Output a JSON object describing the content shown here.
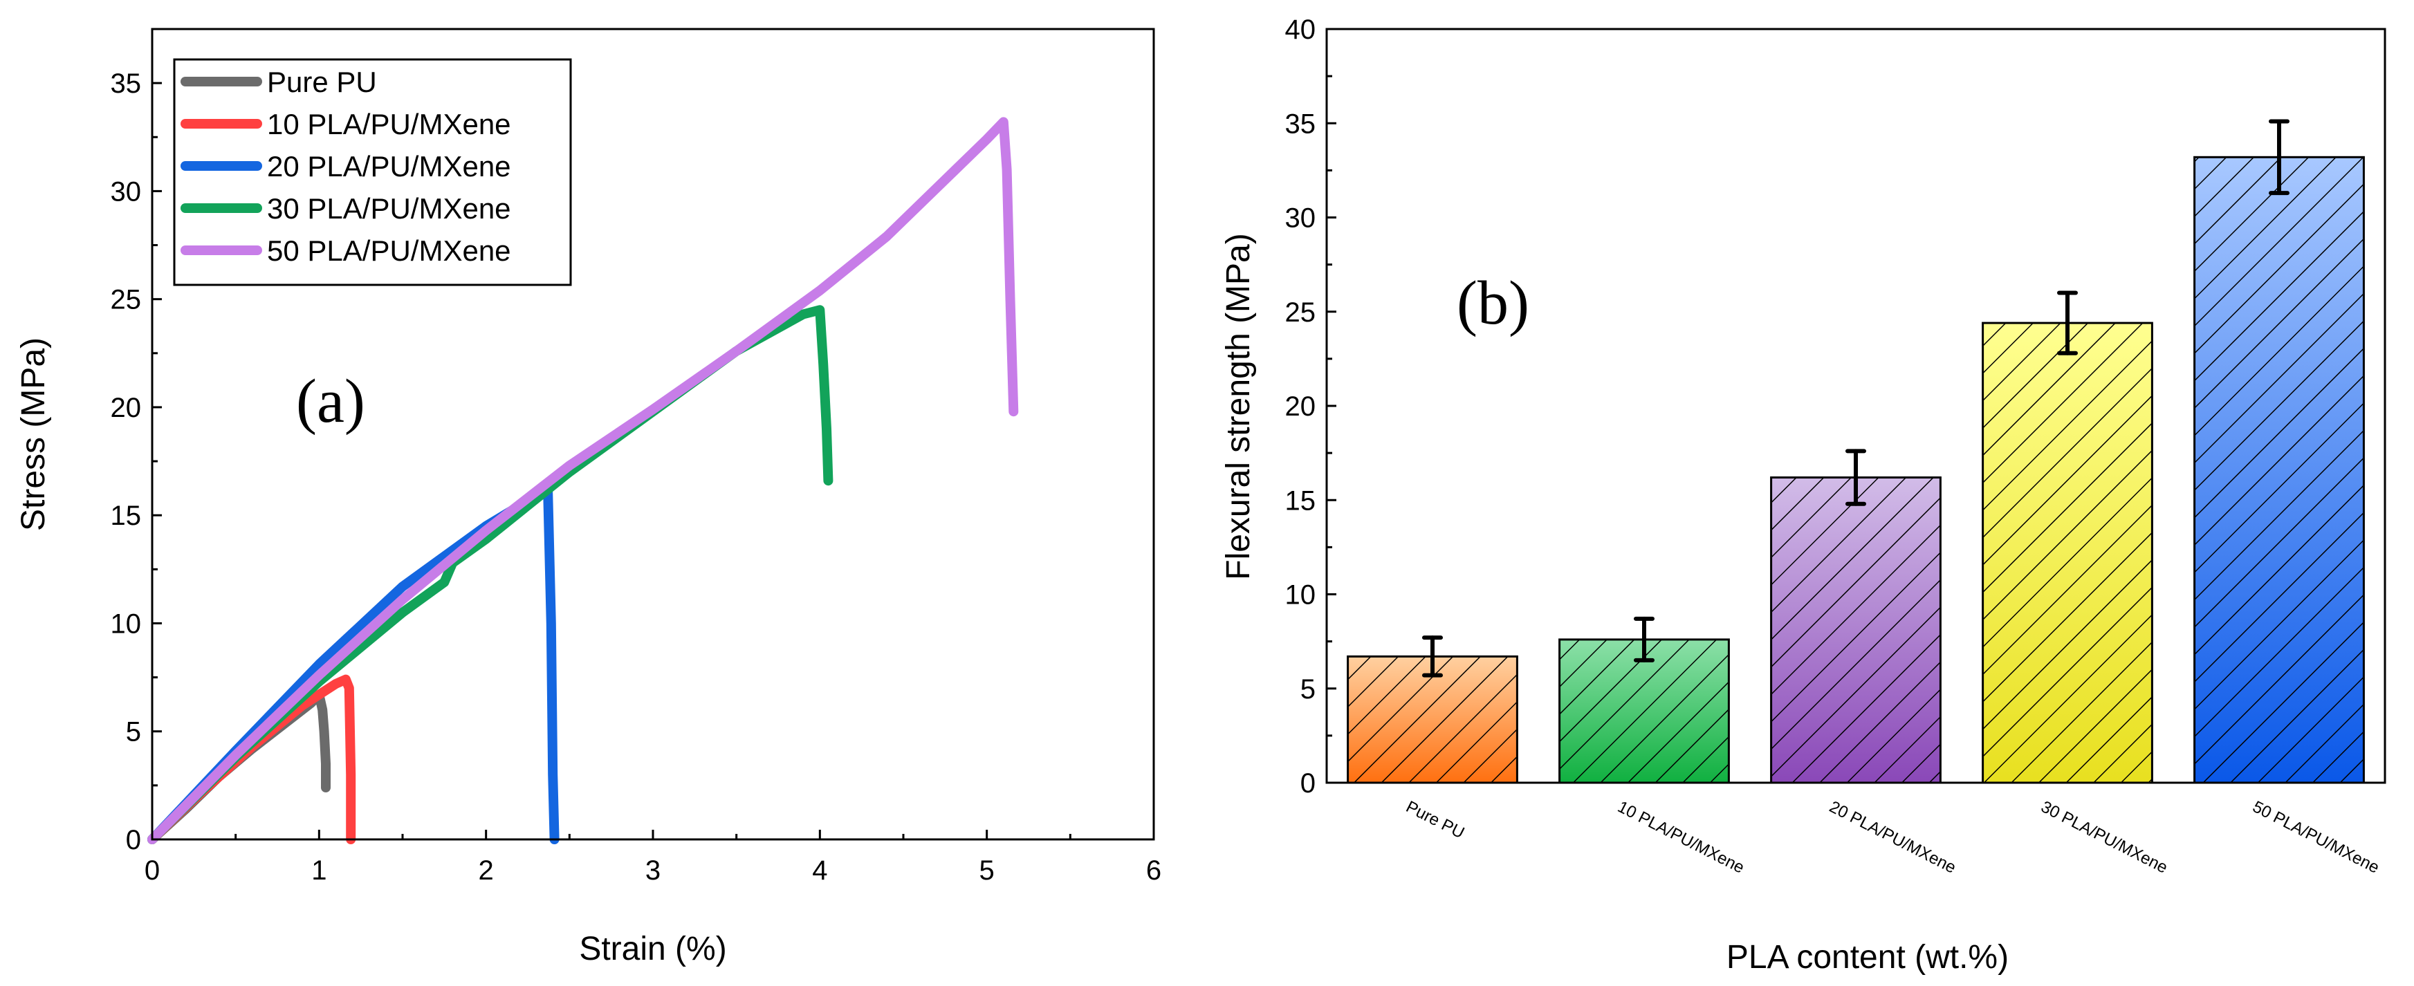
{
  "chart_data": [
    {
      "type": "line",
      "panel_label": "(a)",
      "xlabel": "Strain (%)",
      "ylabel": "Stress (MPa)",
      "xlim": [
        0,
        6
      ],
      "ylim": [
        0,
        37.5
      ],
      "xticks": [
        0,
        1,
        2,
        3,
        4,
        5,
        6
      ],
      "yticks": [
        0,
        5,
        10,
        15,
        20,
        25,
        30,
        35
      ],
      "legend_position": "top-left",
      "series": [
        {
          "name": "Pure PU",
          "color": "#6b6b6b",
          "x": [
            0,
            0.2,
            0.4,
            0.6,
            0.8,
            0.95,
            1.0,
            1.02,
            1.03,
            1.04,
            1.04
          ],
          "y": [
            0,
            1.4,
            2.9,
            4.2,
            5.4,
            6.3,
            6.7,
            6.0,
            5.0,
            3.5,
            2.4
          ]
        },
        {
          "name": "10 PLA/PU/MXene",
          "color": "#ff4040",
          "x": [
            0,
            0.3,
            0.6,
            0.9,
            1.1,
            1.16,
            1.18,
            1.19,
            1.19
          ],
          "y": [
            0,
            2.2,
            4.3,
            6.2,
            7.2,
            7.4,
            7.0,
            3.0,
            0
          ]
        },
        {
          "name": "20 PLA/PU/MXene",
          "color": "#1466e0",
          "x": [
            0,
            0.5,
            1.0,
            1.5,
            2.0,
            2.3,
            2.37,
            2.39,
            2.4,
            2.41
          ],
          "y": [
            0,
            4.1,
            8.1,
            11.7,
            14.5,
            15.9,
            16.3,
            10.0,
            3.0,
            0
          ]
        },
        {
          "name": "30 PLA/PU/MXene",
          "color": "#12a35a",
          "x": [
            0,
            0.5,
            1.0,
            1.5,
            1.75,
            1.8,
            2.0,
            2.5,
            3.0,
            3.5,
            3.9,
            4.0,
            4.02,
            4.04,
            4.05
          ],
          "y": [
            0,
            3.8,
            7.3,
            10.5,
            11.9,
            12.8,
            13.9,
            17.0,
            19.8,
            22.6,
            24.3,
            24.5,
            22.0,
            19.0,
            16.6
          ]
        },
        {
          "name": "50 PLA/PU/MXene",
          "color": "#c77de8",
          "x": [
            0,
            0.5,
            1.0,
            1.5,
            2.0,
            2.5,
            3.0,
            3.5,
            4.0,
            4.4,
            4.8,
            5.0,
            5.1,
            5.12,
            5.14,
            5.16
          ],
          "y": [
            0,
            3.9,
            7.6,
            11.1,
            14.3,
            17.3,
            19.9,
            22.6,
            25.4,
            27.9,
            30.9,
            32.4,
            33.2,
            31.0,
            25.0,
            19.8
          ]
        }
      ]
    },
    {
      "type": "bar",
      "panel_label": "(b)",
      "xlabel": "PLA content (wt.%)",
      "ylabel": "Flexural strength (MPa)",
      "ylim": [
        0,
        40
      ],
      "yticks": [
        0,
        5,
        10,
        15,
        20,
        25,
        30,
        35,
        40
      ],
      "categories": [
        "Pure PU",
        "10 PLA/PU/MXene",
        "20 PLA/PU/MXene",
        "30 PLA/PU/MXene",
        "50 PLA/PU/MXene"
      ],
      "values": [
        6.7,
        7.6,
        16.2,
        24.4,
        33.2
      ],
      "errors": [
        1.0,
        1.1,
        1.4,
        1.6,
        1.9
      ],
      "colors_top": [
        "#ffd0a0",
        "#8ce0a8",
        "#d2bce8",
        "#ffff90",
        "#a8c8ff"
      ],
      "colors_bottom": [
        "#ff7010",
        "#10b040",
        "#8a48b8",
        "#e8e020",
        "#0a58e8"
      ],
      "hatch": "diagonal"
    }
  ]
}
